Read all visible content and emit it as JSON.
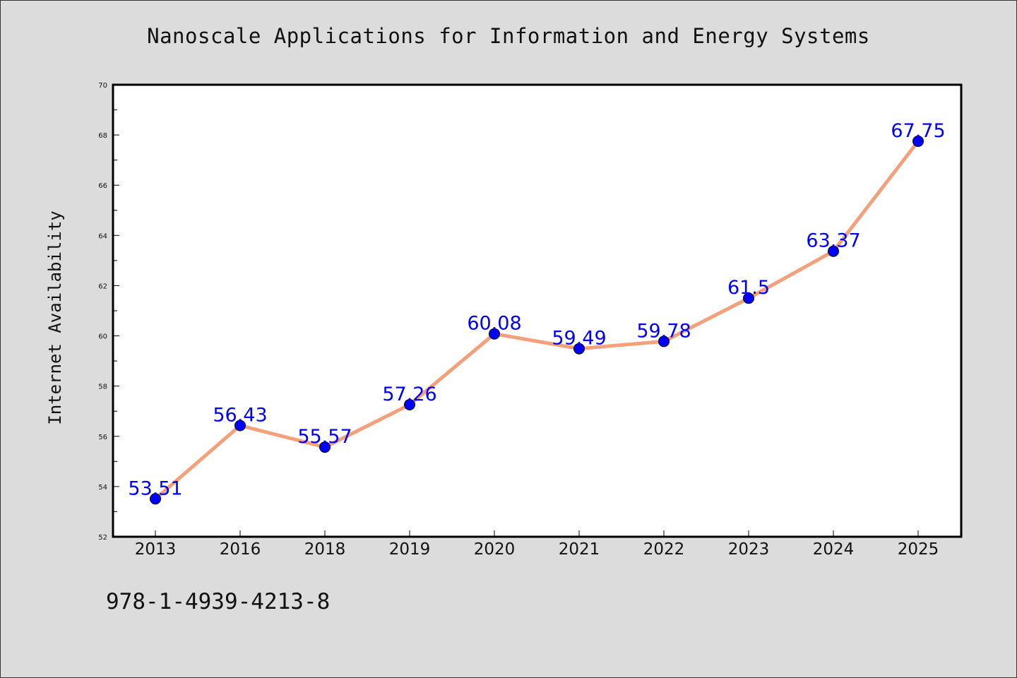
{
  "chart_data": {
    "type": "line",
    "title": "Nanoscale Applications for Information and Energy Systems",
    "xlabel": "",
    "ylabel": "Internet Availability",
    "categories": [
      "2013",
      "2016",
      "2018",
      "2019",
      "2020",
      "2021",
      "2022",
      "2023",
      "2024",
      "2025"
    ],
    "series": [
      {
        "values": [
          53.51,
          56.43,
          55.57,
          57.26,
          60.08,
          59.49,
          59.78,
          61.5,
          63.37,
          67.75
        ],
        "labels": [
          "53.51",
          "56.43",
          "55.57",
          "57.26",
          "60.08",
          "59.49",
          "59.78",
          "61.5",
          "63.37",
          "67.75"
        ]
      }
    ],
    "ylim": [
      52,
      70
    ],
    "yticks": [
      "52",
      "54",
      "56",
      "58",
      "60",
      "62",
      "64",
      "66",
      "68",
      "70"
    ],
    "grid": false,
    "line_color": "#f4a07a",
    "marker_color": "#0000ff",
    "label_color": "#0000ff"
  },
  "footer": {
    "isbn": "978-1-4939-4213-8"
  }
}
